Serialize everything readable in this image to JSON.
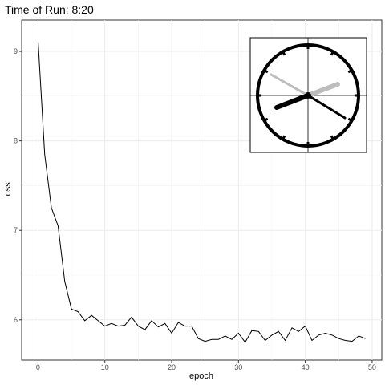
{
  "chart_data": {
    "type": "line",
    "title": "Time of Run: 8:20",
    "xlabel": "epoch",
    "ylabel": "loss",
    "xlim": [
      -2.45,
      51.45
    ],
    "ylim": [
      5.55,
      9.35
    ],
    "x_ticks": [
      0,
      10,
      20,
      30,
      40,
      50
    ],
    "y_ticks": [
      6,
      7,
      8,
      9
    ],
    "grid": true,
    "legend": "none",
    "series": [
      {
        "color": "#000000",
        "x": [
          0,
          1,
          2,
          3,
          4,
          5,
          6,
          7,
          8,
          9,
          10,
          11,
          12,
          13,
          14,
          15,
          16,
          17,
          18,
          19,
          20,
          21,
          22,
          23,
          24,
          25,
          26,
          27,
          28,
          29,
          30,
          31,
          32,
          33,
          34,
          35,
          36,
          37,
          38,
          39,
          40,
          41,
          42,
          43,
          44,
          45,
          46,
          47,
          48,
          49
        ],
        "y": [
          9.13,
          7.85,
          7.25,
          7.05,
          6.43,
          6.12,
          6.09,
          5.99,
          6.05,
          5.99,
          5.93,
          5.96,
          5.93,
          5.94,
          6.03,
          5.93,
          5.89,
          5.99,
          5.92,
          5.96,
          5.85,
          5.97,
          5.93,
          5.93,
          5.79,
          5.76,
          5.78,
          5.78,
          5.82,
          5.78,
          5.85,
          5.75,
          5.88,
          5.87,
          5.77,
          5.83,
          5.87,
          5.77,
          5.91,
          5.87,
          5.93,
          5.77,
          5.83,
          5.85,
          5.83,
          5.79,
          5.77,
          5.76,
          5.82,
          5.79
        ]
      }
    ]
  },
  "inset_clock": {
    "hour_hand_color": "#000000",
    "minute_hand_color": "#000000",
    "second_hand_color": "#bdbdbd",
    "hour_shadow_color": "#bdbdbd"
  }
}
